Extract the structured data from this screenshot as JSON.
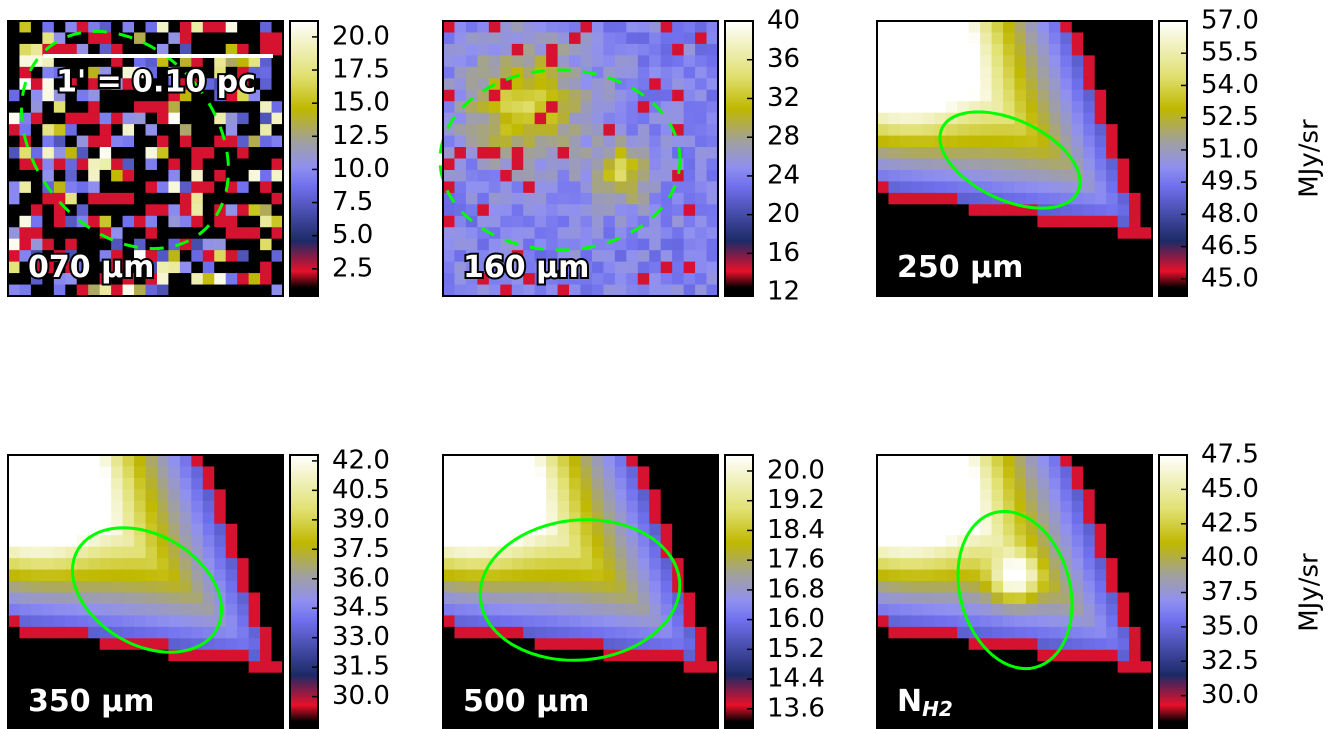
{
  "panels": [
    {
      "label": "070 μm",
      "scale_bar": "1' = 0.10 pc",
      "colorbar": {
        "lim": [
          0.45,
          21.2
        ],
        "ticks": [
          2.5,
          {
            "value": 5,
            "label": "5.0"
          },
          7.5,
          {
            "value": 10,
            "label": "10.0"
          },
          12.5,
          {
            "value": 15,
            "label": "15.0"
          },
          17.5,
          {
            "value": 20,
            "label": "20.0"
          }
        ]
      }
    },
    {
      "label": "160 μm",
      "colorbar": {
        "lim": [
          11.6,
          40
        ],
        "ticks": [
          12,
          16,
          20,
          24,
          28,
          32,
          36,
          40
        ]
      }
    },
    {
      "label": "250 μm",
      "unit": "MJy/sr",
      "colorbar": {
        "lim": [
          44.2,
          57
        ],
        "ticks": [
          {
            "value": 45,
            "label": "45.0"
          },
          46.5,
          {
            "value": 48,
            "label": "48.0"
          },
          49.5,
          {
            "value": 51,
            "label": "51.0"
          },
          52.5,
          {
            "value": 54,
            "label": "54.0"
          },
          55.5,
          {
            "value": 57,
            "label": "57.0"
          }
        ]
      }
    },
    {
      "label": "350 μm",
      "colorbar": {
        "lim": [
          28.3,
          42.3
        ],
        "ticks": [
          {
            "value": 30,
            "label": "30.0"
          },
          31.5,
          {
            "value": 33,
            "label": "33.0"
          },
          34.5,
          {
            "value": 36,
            "label": "36.0"
          },
          37.5,
          {
            "value": 39,
            "label": "39.0"
          },
          40.5,
          {
            "value": 42,
            "label": "42.0"
          }
        ]
      }
    },
    {
      "label": "500 μm",
      "colorbar": {
        "lim": [
          13.03,
          20.43
        ],
        "ticks": [
          13.6,
          14.4,
          15.2,
          {
            "value": 16,
            "label": "16.0"
          },
          16.8,
          17.6,
          18.4,
          19.2,
          {
            "value": 20,
            "label": "20.0"
          }
        ]
      }
    },
    {
      "label": "N",
      "label_sub": "H2",
      "unit": "MJy/sr",
      "colorbar": {
        "lim": [
          27.5,
          47.5
        ],
        "ticks": [
          {
            "value": 30,
            "label": "30.0"
          },
          32.5,
          {
            "value": 35,
            "label": "35.0"
          },
          37.5,
          {
            "value": 40,
            "label": "40.0"
          },
          42.5,
          {
            "value": 45,
            "label": "45.0"
          },
          47.5
        ]
      }
    }
  ]
}
